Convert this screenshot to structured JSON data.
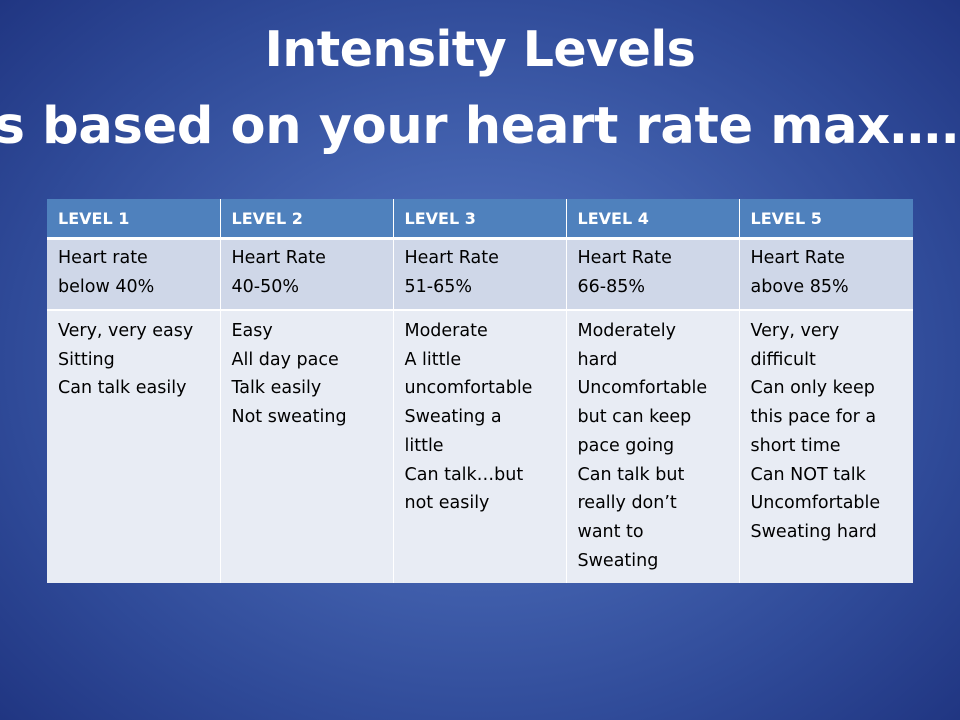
{
  "slide": {
    "title_line1": "Intensity Levels",
    "title_line2": "Is based on your heart rate max…."
  },
  "table": {
    "headers": [
      "LEVEL 1",
      "LEVEL 2",
      "LEVEL 3",
      "LEVEL 4",
      "LEVEL 5"
    ],
    "heart_rate": [
      [
        "Heart rate",
        "below 40%"
      ],
      [
        "Heart Rate",
        "40-50%"
      ],
      [
        "Heart Rate",
        "51-65%"
      ],
      [
        "Heart Rate",
        "66-85%"
      ],
      [
        "Heart Rate",
        "above 85%"
      ]
    ],
    "descriptions": [
      [
        "Very, very easy",
        "Sitting",
        "Can talk easily"
      ],
      [
        "Easy",
        "All day pace",
        "Talk easily",
        "Not sweating"
      ],
      [
        "Moderate",
        "A little",
        "uncomfortable",
        "Sweating a",
        "little",
        "Can talk…but",
        "not easily"
      ],
      [
        "Moderately",
        "hard",
        "Uncomfortable",
        "but can keep",
        "pace going",
        "Can talk but",
        "really don’t",
        "want to",
        "Sweating"
      ],
      [
        "Very, very",
        "difficult",
        "Can only keep",
        "this pace for a",
        "short time",
        "Can NOT talk",
        "Uncomfortable",
        "Sweating hard"
      ]
    ]
  },
  "colors": {
    "header_fill": "#4f81bd",
    "rate_row_fill": "#cfd7e8",
    "desc_row_fill": "#e8ecf4",
    "title_text": "#ffffff"
  }
}
